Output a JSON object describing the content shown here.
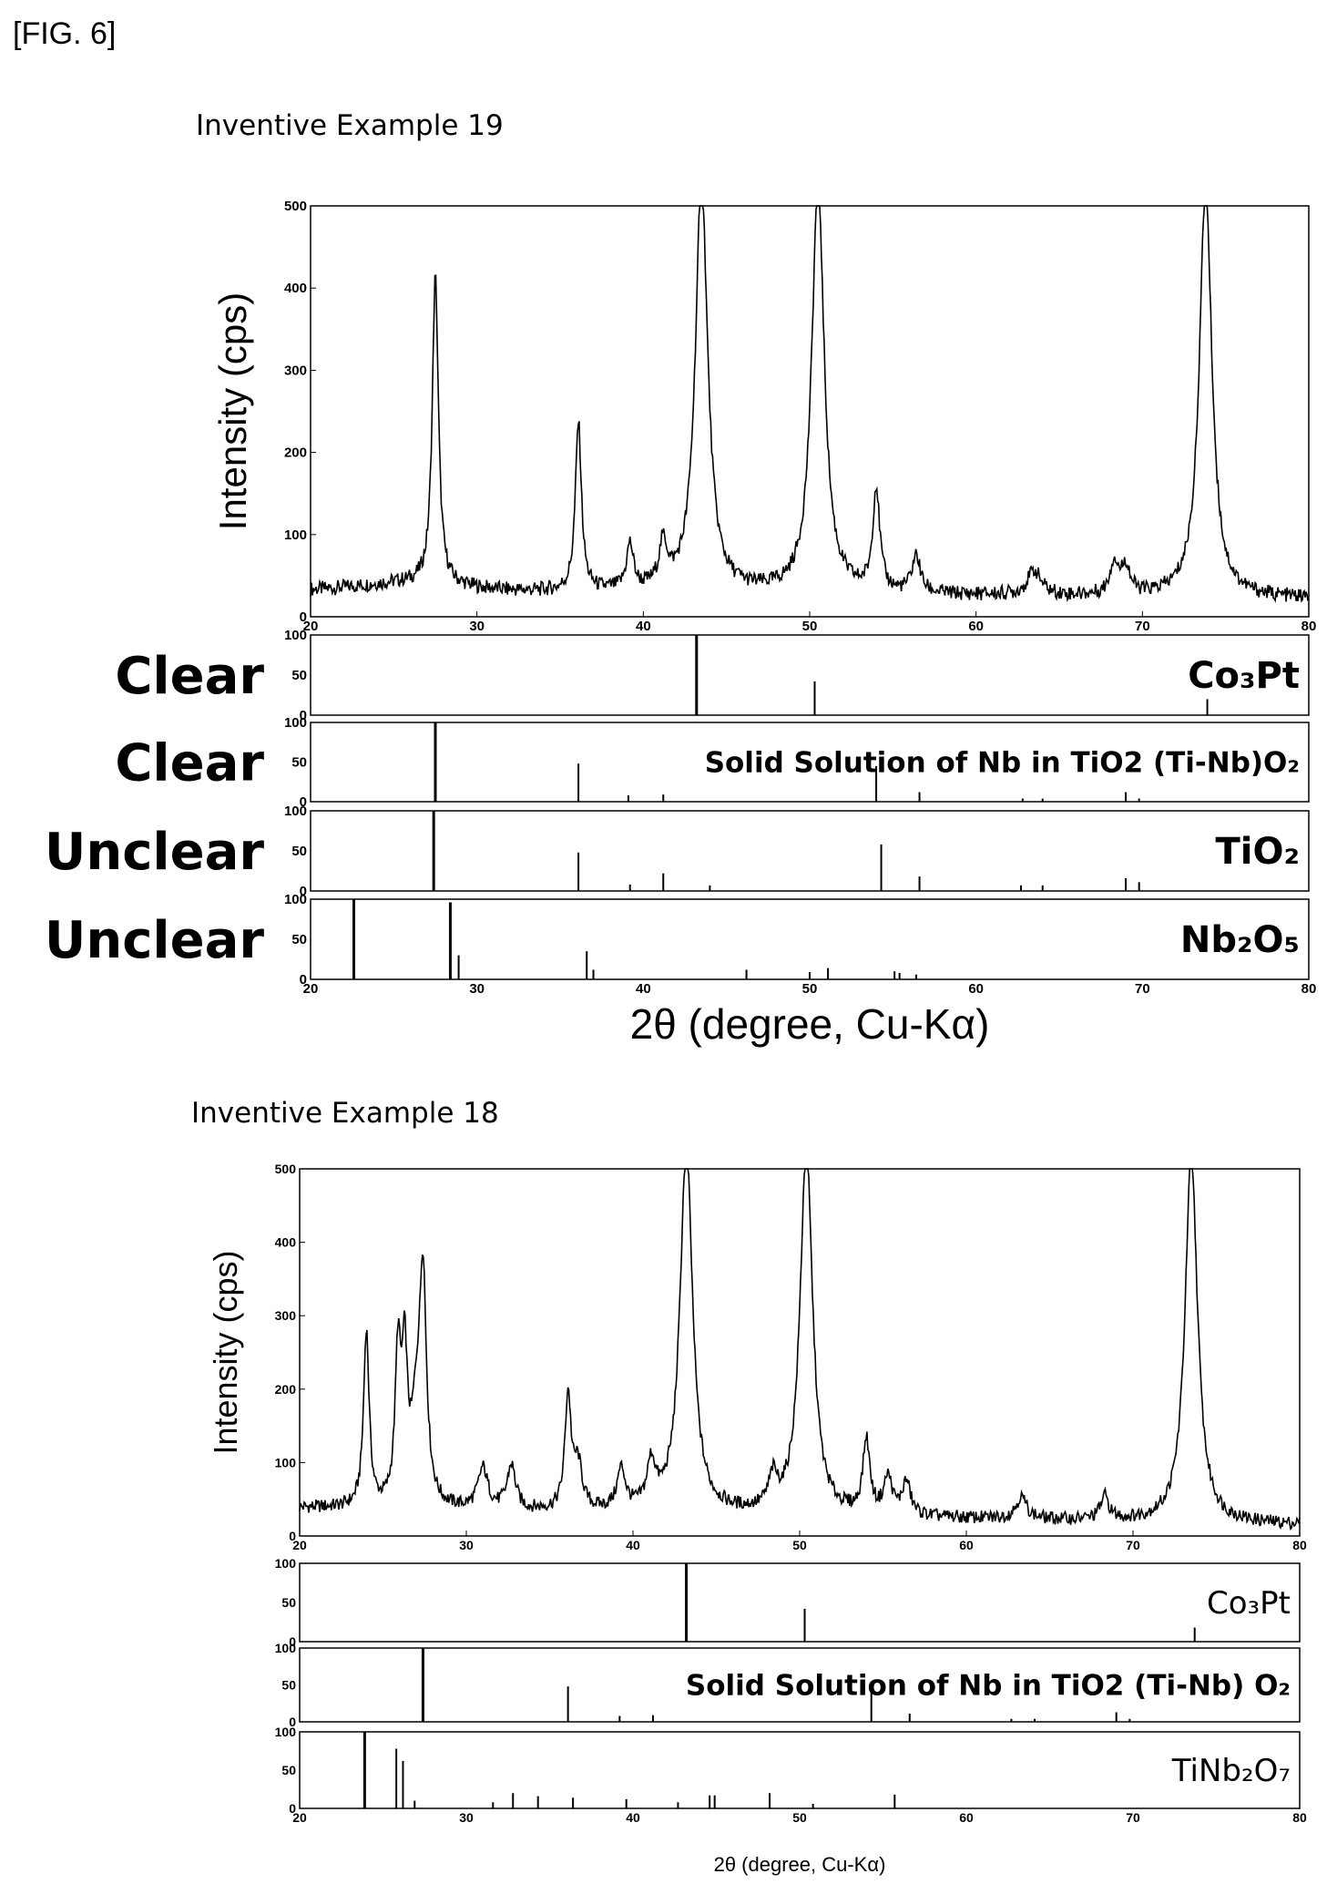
{
  "figure_label": "[FIG. 6]",
  "colors": {
    "line": "#000000",
    "background": "#ffffff"
  },
  "chart_data": [
    {
      "type": "line",
      "title": "Inventive Example 19",
      "ylabel": "Intensity (cps)",
      "xlabel": "2θ (degree, Cu-Kα)",
      "xlim": [
        20,
        80
      ],
      "ylim": [
        0,
        500
      ],
      "xticks": [
        "20",
        "30",
        "40",
        "50",
        "60",
        "70",
        "80"
      ],
      "yticks": [
        "0",
        "100",
        "200",
        "300",
        "400",
        "500"
      ],
      "baseline": 32,
      "baseline_end": 22,
      "peaks": [
        {
          "x": 27.5,
          "y": 375,
          "w": 0.22
        },
        {
          "x": 36.1,
          "y": 205,
          "w": 0.22
        },
        {
          "x": 39.2,
          "y": 55,
          "w": 0.25
        },
        {
          "x": 41.2,
          "y": 52,
          "w": 0.3
        },
        {
          "x": 43.5,
          "y": 500,
          "w": 0.45
        },
        {
          "x": 50.5,
          "y": 500,
          "w": 0.45
        },
        {
          "x": 54.0,
          "y": 125,
          "w": 0.25
        },
        {
          "x": 56.4,
          "y": 45,
          "w": 0.3
        },
        {
          "x": 63.5,
          "y": 30,
          "w": 0.5
        },
        {
          "x": 68.3,
          "y": 40,
          "w": 0.3
        },
        {
          "x": 69.0,
          "y": 35,
          "w": 0.3
        },
        {
          "x": 73.8,
          "y": 500,
          "w": 0.45
        }
      ],
      "references": [
        {
          "left_label": "Clear",
          "label": "Co₃Pt",
          "ylim": [
            0,
            100
          ],
          "yticks": [
            "0",
            "50",
            "100"
          ],
          "sticks": [
            {
              "x": 43.2,
              "y": 100
            },
            {
              "x": 50.3,
              "y": 42
            },
            {
              "x": 73.9,
              "y": 20
            }
          ]
        },
        {
          "left_label": "Clear",
          "label": "Solid Solution of Nb in TiO2 (Ti-Nb)O₂",
          "ylim": [
            0,
            100
          ],
          "yticks": [
            "0",
            "50",
            "100"
          ],
          "sticks": [
            {
              "x": 27.5,
              "y": 100
            },
            {
              "x": 36.1,
              "y": 48
            },
            {
              "x": 39.1,
              "y": 8
            },
            {
              "x": 41.2,
              "y": 9
            },
            {
              "x": 54.0,
              "y": 45
            },
            {
              "x": 56.6,
              "y": 12
            },
            {
              "x": 62.8,
              "y": 4
            },
            {
              "x": 64.0,
              "y": 4
            },
            {
              "x": 69.0,
              "y": 12
            },
            {
              "x": 69.8,
              "y": 4
            }
          ]
        },
        {
          "left_label": "Unclear",
          "label": "TiO₂",
          "ylim": [
            0,
            100
          ],
          "yticks": [
            "0",
            "50",
            "100"
          ],
          "sticks": [
            {
              "x": 27.4,
              "y": 100
            },
            {
              "x": 36.1,
              "y": 48
            },
            {
              "x": 39.2,
              "y": 8
            },
            {
              "x": 41.2,
              "y": 22
            },
            {
              "x": 44.0,
              "y": 7
            },
            {
              "x": 54.3,
              "y": 58
            },
            {
              "x": 56.6,
              "y": 18
            },
            {
              "x": 62.7,
              "y": 7
            },
            {
              "x": 64.0,
              "y": 7
            },
            {
              "x": 69.0,
              "y": 16
            },
            {
              "x": 69.8,
              "y": 11
            }
          ]
        },
        {
          "left_label": "Unclear",
          "label": "Nb₂O₅",
          "ylim": [
            0,
            100
          ],
          "yticks": [
            "0",
            "50",
            "100"
          ],
          "sticks": [
            {
              "x": 22.6,
              "y": 100
            },
            {
              "x": 28.4,
              "y": 96
            },
            {
              "x": 28.9,
              "y": 30
            },
            {
              "x": 36.6,
              "y": 35
            },
            {
              "x": 37.0,
              "y": 12
            },
            {
              "x": 46.2,
              "y": 12
            },
            {
              "x": 50.0,
              "y": 9
            },
            {
              "x": 51.1,
              "y": 14
            },
            {
              "x": 55.1,
              "y": 10
            },
            {
              "x": 55.4,
              "y": 8
            },
            {
              "x": 56.4,
              "y": 6
            }
          ]
        }
      ]
    },
    {
      "type": "line",
      "title": "Inventive Example 18",
      "ylabel": "Intensity (cps)",
      "xlabel": "2θ (degree, Cu-Kα)",
      "xlim": [
        20,
        80
      ],
      "ylim": [
        0,
        500
      ],
      "xticks": [
        "20",
        "30",
        "40",
        "50",
        "60",
        "70",
        "80"
      ],
      "yticks": [
        "0",
        "100",
        "200",
        "300",
        "400",
        "500"
      ],
      "baseline": 38,
      "baseline_end": 15,
      "peaks": [
        {
          "x": 24.0,
          "y": 240,
          "w": 0.2
        },
        {
          "x": 25.9,
          "y": 200,
          "w": 0.2
        },
        {
          "x": 26.3,
          "y": 185,
          "w": 0.2
        },
        {
          "x": 27.0,
          "y": 105,
          "w": 0.35
        },
        {
          "x": 27.4,
          "y": 300,
          "w": 0.25
        },
        {
          "x": 31.0,
          "y": 55,
          "w": 0.35
        },
        {
          "x": 32.7,
          "y": 60,
          "w": 0.3
        },
        {
          "x": 36.1,
          "y": 155,
          "w": 0.22
        },
        {
          "x": 36.7,
          "y": 60,
          "w": 0.3
        },
        {
          "x": 39.3,
          "y": 55,
          "w": 0.3
        },
        {
          "x": 41.1,
          "y": 60,
          "w": 0.3
        },
        {
          "x": 43.2,
          "y": 500,
          "w": 0.45
        },
        {
          "x": 48.4,
          "y": 40,
          "w": 0.3
        },
        {
          "x": 50.4,
          "y": 500,
          "w": 0.45
        },
        {
          "x": 54.0,
          "y": 100,
          "w": 0.25
        },
        {
          "x": 55.3,
          "y": 50,
          "w": 0.3
        },
        {
          "x": 56.4,
          "y": 45,
          "w": 0.3
        },
        {
          "x": 63.3,
          "y": 30,
          "w": 0.4
        },
        {
          "x": 68.3,
          "y": 32,
          "w": 0.3
        },
        {
          "x": 73.5,
          "y": 500,
          "w": 0.45
        }
      ],
      "references": [
        {
          "left_label": "",
          "label": "Co₃Pt",
          "ylim": [
            0,
            100
          ],
          "yticks": [
            "0",
            "50",
            "100"
          ],
          "sticks": [
            {
              "x": 43.2,
              "y": 100
            },
            {
              "x": 50.3,
              "y": 42
            },
            {
              "x": 73.7,
              "y": 18
            }
          ]
        },
        {
          "left_label": "",
          "label": "Solid Solution of Nb in TiO2 (Ti-Nb) O₂",
          "ylim": [
            0,
            100
          ],
          "yticks": [
            "0",
            "50",
            "100"
          ],
          "sticks": [
            {
              "x": 27.4,
              "y": 100
            },
            {
              "x": 36.1,
              "y": 48
            },
            {
              "x": 39.2,
              "y": 8
            },
            {
              "x": 41.2,
              "y": 9
            },
            {
              "x": 54.3,
              "y": 48
            },
            {
              "x": 56.6,
              "y": 11
            },
            {
              "x": 62.7,
              "y": 4
            },
            {
              "x": 64.1,
              "y": 4
            },
            {
              "x": 69.0,
              "y": 13
            },
            {
              "x": 69.8,
              "y": 4
            }
          ]
        },
        {
          "left_label": "",
          "label": "TiNb₂O₇",
          "ylim": [
            0,
            100
          ],
          "yticks": [
            "0",
            "50",
            "100"
          ],
          "sticks": [
            {
              "x": 23.9,
              "y": 100
            },
            {
              "x": 25.8,
              "y": 78
            },
            {
              "x": 26.2,
              "y": 62
            },
            {
              "x": 26.9,
              "y": 10
            },
            {
              "x": 31.6,
              "y": 8
            },
            {
              "x": 32.8,
              "y": 20
            },
            {
              "x": 34.3,
              "y": 16
            },
            {
              "x": 36.4,
              "y": 14
            },
            {
              "x": 39.6,
              "y": 12
            },
            {
              "x": 42.7,
              "y": 8
            },
            {
              "x": 44.6,
              "y": 17
            },
            {
              "x": 44.9,
              "y": 17
            },
            {
              "x": 48.2,
              "y": 20
            },
            {
              "x": 50.8,
              "y": 6
            },
            {
              "x": 55.7,
              "y": 18
            }
          ]
        }
      ]
    }
  ]
}
